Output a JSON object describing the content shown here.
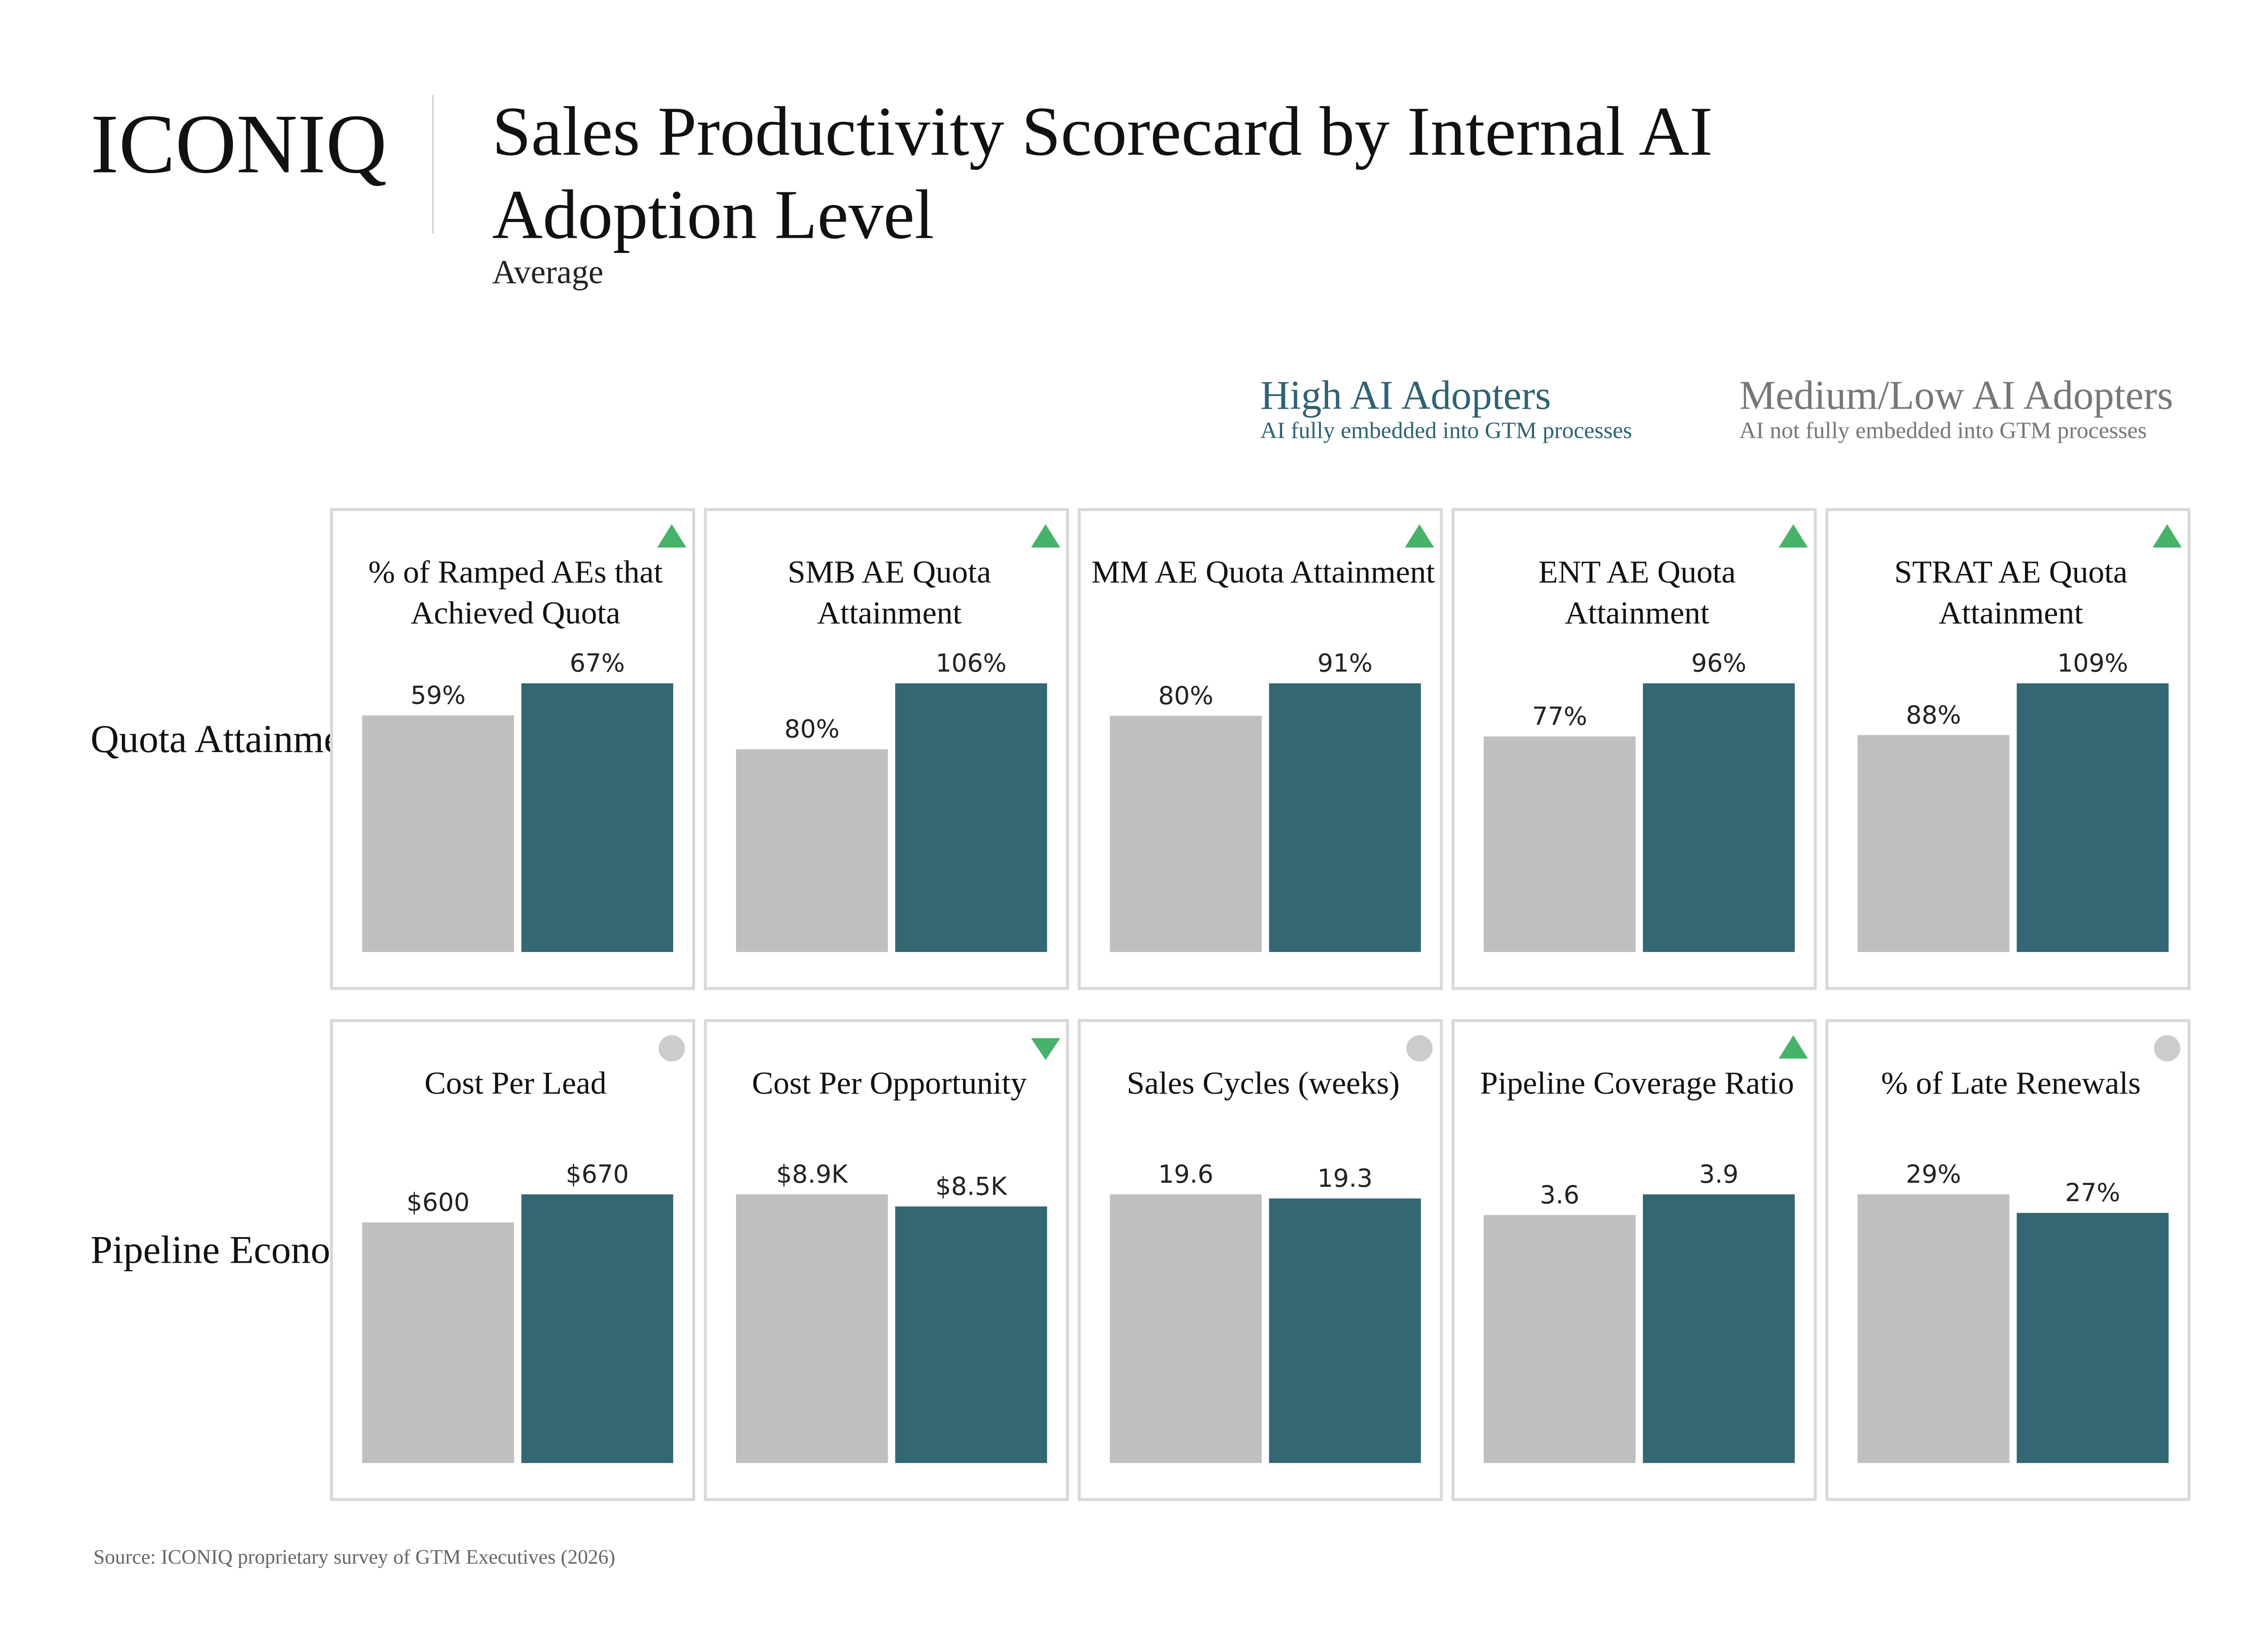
{
  "brand": {
    "logo": "ICONIQ"
  },
  "header": {
    "title": "Sales Productivity Scorecard by Internal AI Adoption Level",
    "subtitle": "Average"
  },
  "legend": {
    "high": {
      "title": "High AI Adopters",
      "subtitle": "AI fully embedded into GTM processes",
      "color": "#336773"
    },
    "medium_low": {
      "title": "Medium/Low AI Adopters",
      "subtitle": "AI not fully embedded into GTM processes",
      "color": "#bfbfbf"
    }
  },
  "indicator_colors": {
    "up": "#47b36a",
    "down": "#47b36a",
    "neutral": "#cccccc"
  },
  "rows": [
    {
      "label": "Quota Attainment"
    },
    {
      "label": "Pipeline Economics"
    }
  ],
  "chart_data": [
    {
      "type": "bar",
      "title": "% of Ramped AEs that Achieved Quota",
      "row": 0,
      "indicator": "up",
      "categories": [
        "Medium/Low AI Adopters",
        "High AI Adopters"
      ],
      "values": [
        59,
        67
      ],
      "labels": [
        "59%",
        "67%"
      ]
    },
    {
      "type": "bar",
      "title": "SMB AE Quota Attainment",
      "row": 0,
      "indicator": "up",
      "categories": [
        "Medium/Low AI Adopters",
        "High AI Adopters"
      ],
      "values": [
        80,
        106
      ],
      "labels": [
        "80%",
        "106%"
      ]
    },
    {
      "type": "bar",
      "title": "MM AE Quota Attainment",
      "row": 0,
      "indicator": "up",
      "categories": [
        "Medium/Low AI Adopters",
        "High AI Adopters"
      ],
      "values": [
        80,
        91
      ],
      "labels": [
        "80%",
        "91%"
      ]
    },
    {
      "type": "bar",
      "title": "ENT AE Quota Attainment",
      "row": 0,
      "indicator": "up",
      "categories": [
        "Medium/Low AI Adopters",
        "High AI Adopters"
      ],
      "values": [
        77,
        96
      ],
      "labels": [
        "77%",
        "96%"
      ]
    },
    {
      "type": "bar",
      "title": "STRAT AE Quota Attainment",
      "row": 0,
      "indicator": "up",
      "categories": [
        "Medium/Low AI Adopters",
        "High AI Adopters"
      ],
      "values": [
        88,
        109
      ],
      "labels": [
        "88%",
        "109%"
      ]
    },
    {
      "type": "bar",
      "title": "Cost Per Lead",
      "row": 1,
      "indicator": "neutral",
      "categories": [
        "Medium/Low AI Adopters",
        "High AI Adopters"
      ],
      "values": [
        600,
        670
      ],
      "labels": [
        "$600",
        "$670"
      ]
    },
    {
      "type": "bar",
      "title": "Cost Per Opportunity",
      "row": 1,
      "indicator": "down",
      "categories": [
        "Medium/Low AI Adopters",
        "High AI Adopters"
      ],
      "values": [
        8900,
        8500
      ],
      "labels": [
        "$8.9K",
        "$8.5K"
      ]
    },
    {
      "type": "bar",
      "title": "Sales Cycles (weeks)",
      "row": 1,
      "indicator": "neutral",
      "categories": [
        "Medium/Low AI Adopters",
        "High AI Adopters"
      ],
      "values": [
        19.6,
        19.3
      ],
      "labels": [
        "19.6",
        "19.3"
      ]
    },
    {
      "type": "bar",
      "title": "Pipeline Coverage Ratio",
      "row": 1,
      "indicator": "up",
      "categories": [
        "Medium/Low AI Adopters",
        "High AI Adopters"
      ],
      "values": [
        3.6,
        3.9
      ],
      "labels": [
        "3.6",
        "3.9"
      ]
    },
    {
      "type": "bar",
      "title": "% of Late Renewals",
      "row": 1,
      "indicator": "neutral",
      "categories": [
        "Medium/Low AI Adopters",
        "High AI Adopters"
      ],
      "values": [
        29,
        27
      ],
      "labels": [
        "29%",
        "27%"
      ]
    }
  ],
  "source": "Source: ICONIQ proprietary survey of GTM Executives (2026)"
}
